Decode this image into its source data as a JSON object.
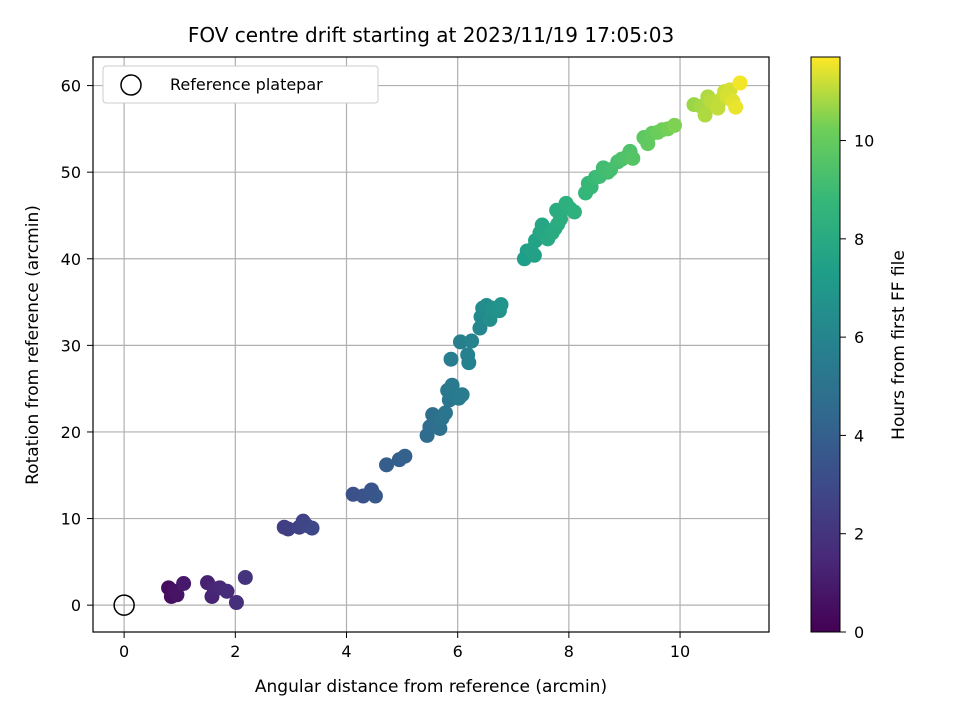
{
  "chart_data": {
    "type": "scatter",
    "title": "FOV centre drift starting at 2023/11/19 17:05:03",
    "xlabel": "Angular distance from reference (arcmin)",
    "ylabel": "Rotation from reference (arcmin)",
    "xlim": [
      -0.56,
      11.6
    ],
    "ylim": [
      -3.1,
      63.3
    ],
    "xticks": [
      0,
      2,
      4,
      6,
      8,
      10
    ],
    "yticks": [
      0,
      10,
      20,
      30,
      40,
      50,
      60
    ],
    "grid": true,
    "legend": {
      "placement": "upper-left",
      "entries": [
        "Reference platepar"
      ]
    },
    "colorbar": {
      "label": "Hours from first FF file",
      "range": [
        0,
        11.7
      ],
      "ticks": [
        0,
        2,
        4,
        6,
        8,
        10
      ],
      "colormap": "viridis"
    },
    "reference_point": {
      "x": 0,
      "y": 0,
      "label": "Reference platepar"
    },
    "points": [
      {
        "x": 0.8,
        "y": 2.0,
        "h": 0.4
      },
      {
        "x": 0.85,
        "y": 1.0,
        "h": 0.5
      },
      {
        "x": 0.9,
        "y": 1.6,
        "h": 0.6
      },
      {
        "x": 0.95,
        "y": 1.2,
        "h": 0.7
      },
      {
        "x": 1.07,
        "y": 2.5,
        "h": 0.9
      },
      {
        "x": 1.5,
        "y": 2.6,
        "h": 1.2
      },
      {
        "x": 1.58,
        "y": 1.0,
        "h": 1.3
      },
      {
        "x": 1.62,
        "y": 1.9,
        "h": 1.4
      },
      {
        "x": 1.72,
        "y": 2.0,
        "h": 1.5
      },
      {
        "x": 1.85,
        "y": 1.6,
        "h": 1.6
      },
      {
        "x": 2.02,
        "y": 0.3,
        "h": 1.8
      },
      {
        "x": 2.18,
        "y": 3.2,
        "h": 2.0
      },
      {
        "x": 2.88,
        "y": 9.0,
        "h": 2.4
      },
      {
        "x": 2.95,
        "y": 8.8,
        "h": 2.5
      },
      {
        "x": 3.15,
        "y": 9.0,
        "h": 2.6
      },
      {
        "x": 3.22,
        "y": 9.7,
        "h": 2.7
      },
      {
        "x": 3.28,
        "y": 9.2,
        "h": 2.8
      },
      {
        "x": 3.38,
        "y": 8.9,
        "h": 2.9
      },
      {
        "x": 4.12,
        "y": 12.8,
        "h": 3.3
      },
      {
        "x": 4.3,
        "y": 12.6,
        "h": 3.4
      },
      {
        "x": 4.45,
        "y": 13.3,
        "h": 3.5
      },
      {
        "x": 4.52,
        "y": 12.6,
        "h": 3.6
      },
      {
        "x": 4.72,
        "y": 16.2,
        "h": 3.9
      },
      {
        "x": 4.95,
        "y": 16.8,
        "h": 4.0
      },
      {
        "x": 5.05,
        "y": 17.2,
        "h": 4.1
      },
      {
        "x": 5.45,
        "y": 19.6,
        "h": 4.6
      },
      {
        "x": 5.5,
        "y": 20.6,
        "h": 4.7
      },
      {
        "x": 5.55,
        "y": 22.0,
        "h": 4.8
      },
      {
        "x": 5.68,
        "y": 20.4,
        "h": 4.9
      },
      {
        "x": 5.72,
        "y": 21.6,
        "h": 5.0
      },
      {
        "x": 5.78,
        "y": 22.2,
        "h": 5.1
      },
      {
        "x": 5.85,
        "y": 23.7,
        "h": 5.2
      },
      {
        "x": 5.82,
        "y": 24.8,
        "h": 5.3
      },
      {
        "x": 5.9,
        "y": 25.4,
        "h": 5.4
      },
      {
        "x": 5.95,
        "y": 24.2,
        "h": 5.4
      },
      {
        "x": 6.02,
        "y": 23.9,
        "h": 5.5
      },
      {
        "x": 6.08,
        "y": 24.3,
        "h": 5.5
      },
      {
        "x": 5.88,
        "y": 28.4,
        "h": 5.6
      },
      {
        "x": 6.05,
        "y": 30.4,
        "h": 5.7
      },
      {
        "x": 6.18,
        "y": 28.9,
        "h": 5.8
      },
      {
        "x": 6.2,
        "y": 28.0,
        "h": 5.8
      },
      {
        "x": 6.25,
        "y": 30.5,
        "h": 5.9
      },
      {
        "x": 6.4,
        "y": 32.0,
        "h": 6.1
      },
      {
        "x": 6.42,
        "y": 33.3,
        "h": 6.2
      },
      {
        "x": 6.45,
        "y": 34.3,
        "h": 6.3
      },
      {
        "x": 6.52,
        "y": 34.6,
        "h": 6.4
      },
      {
        "x": 6.58,
        "y": 33.0,
        "h": 6.5
      },
      {
        "x": 6.62,
        "y": 34.3,
        "h": 6.6
      },
      {
        "x": 6.75,
        "y": 34.0,
        "h": 6.7
      },
      {
        "x": 6.78,
        "y": 34.7,
        "h": 6.8
      },
      {
        "x": 7.2,
        "y": 40.0,
        "h": 7.3
      },
      {
        "x": 7.25,
        "y": 40.9,
        "h": 7.4
      },
      {
        "x": 7.32,
        "y": 41.0,
        "h": 7.5
      },
      {
        "x": 7.38,
        "y": 40.4,
        "h": 7.5
      },
      {
        "x": 7.4,
        "y": 42.1,
        "h": 7.6
      },
      {
        "x": 7.48,
        "y": 43.0,
        "h": 7.7
      },
      {
        "x": 7.52,
        "y": 43.9,
        "h": 7.8
      },
      {
        "x": 7.55,
        "y": 42.9,
        "h": 7.8
      },
      {
        "x": 7.62,
        "y": 42.3,
        "h": 7.9
      },
      {
        "x": 7.7,
        "y": 43.0,
        "h": 8.0
      },
      {
        "x": 7.75,
        "y": 43.5,
        "h": 8.0
      },
      {
        "x": 7.8,
        "y": 44.0,
        "h": 8.1
      },
      {
        "x": 7.78,
        "y": 45.6,
        "h": 8.1
      },
      {
        "x": 7.85,
        "y": 44.6,
        "h": 8.2
      },
      {
        "x": 7.95,
        "y": 46.4,
        "h": 8.3
      },
      {
        "x": 8.02,
        "y": 45.8,
        "h": 8.3
      },
      {
        "x": 8.1,
        "y": 45.4,
        "h": 8.4
      },
      {
        "x": 8.3,
        "y": 47.6,
        "h": 8.7
      },
      {
        "x": 8.35,
        "y": 48.7,
        "h": 8.8
      },
      {
        "x": 8.4,
        "y": 48.3,
        "h": 8.8
      },
      {
        "x": 8.48,
        "y": 49.4,
        "h": 8.9
      },
      {
        "x": 8.55,
        "y": 49.5,
        "h": 9.0
      },
      {
        "x": 8.62,
        "y": 50.5,
        "h": 9.1
      },
      {
        "x": 8.7,
        "y": 50.0,
        "h": 9.1
      },
      {
        "x": 8.75,
        "y": 50.3,
        "h": 9.2
      },
      {
        "x": 8.88,
        "y": 51.2,
        "h": 9.3
      },
      {
        "x": 8.95,
        "y": 51.5,
        "h": 9.4
      },
      {
        "x": 9.05,
        "y": 51.8,
        "h": 9.5
      },
      {
        "x": 9.1,
        "y": 52.4,
        "h": 9.5
      },
      {
        "x": 9.15,
        "y": 51.6,
        "h": 9.6
      },
      {
        "x": 9.35,
        "y": 54.0,
        "h": 9.8
      },
      {
        "x": 9.42,
        "y": 53.3,
        "h": 9.9
      },
      {
        "x": 9.5,
        "y": 54.5,
        "h": 10.0
      },
      {
        "x": 9.6,
        "y": 54.6,
        "h": 10.1
      },
      {
        "x": 9.68,
        "y": 54.9,
        "h": 10.2
      },
      {
        "x": 9.78,
        "y": 55.0,
        "h": 10.3
      },
      {
        "x": 9.9,
        "y": 55.4,
        "h": 10.4
      },
      {
        "x": 10.25,
        "y": 57.8,
        "h": 10.7
      },
      {
        "x": 10.38,
        "y": 57.6,
        "h": 10.8
      },
      {
        "x": 10.45,
        "y": 56.6,
        "h": 10.9
      },
      {
        "x": 10.5,
        "y": 58.7,
        "h": 10.9
      },
      {
        "x": 10.55,
        "y": 58.2,
        "h": 11.0
      },
      {
        "x": 10.6,
        "y": 57.9,
        "h": 11.0
      },
      {
        "x": 10.68,
        "y": 57.4,
        "h": 11.1
      },
      {
        "x": 10.72,
        "y": 58.3,
        "h": 11.1
      },
      {
        "x": 10.8,
        "y": 59.3,
        "h": 11.2
      },
      {
        "x": 10.85,
        "y": 58.7,
        "h": 11.3
      },
      {
        "x": 10.9,
        "y": 59.5,
        "h": 11.3
      },
      {
        "x": 10.95,
        "y": 58.2,
        "h": 11.4
      },
      {
        "x": 11.0,
        "y": 57.5,
        "h": 11.5
      },
      {
        "x": 11.08,
        "y": 60.3,
        "h": 11.6
      }
    ]
  }
}
